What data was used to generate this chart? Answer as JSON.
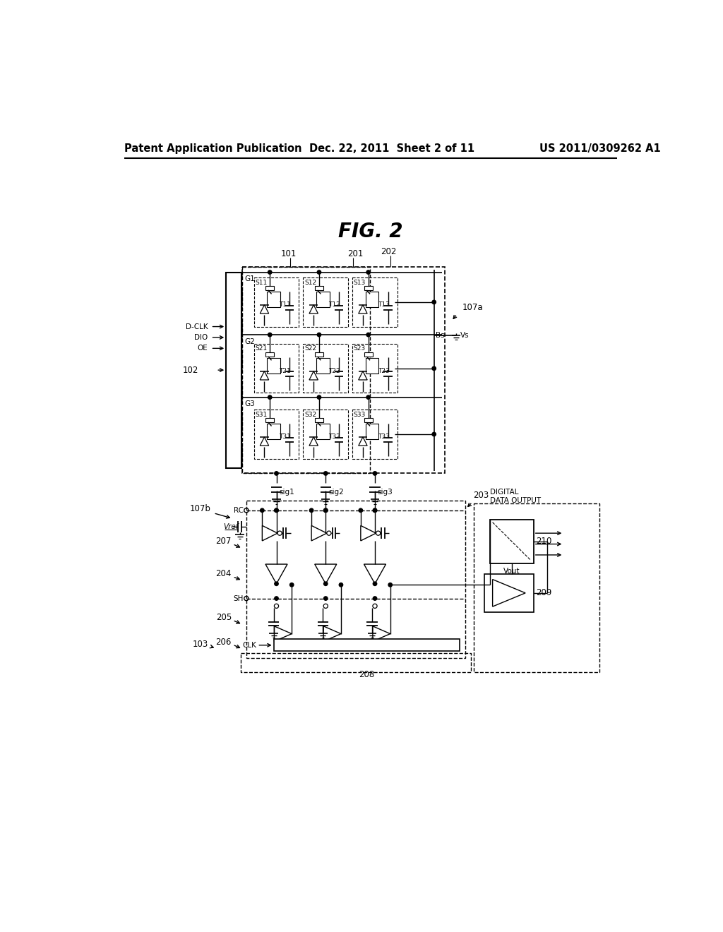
{
  "header_left": "Patent Application Publication",
  "header_mid": "Dec. 22, 2011  Sheet 2 of 11",
  "header_right": "US 2011/0309262 A1",
  "fig_title": "FIG. 2",
  "bg_color": "#ffffff",
  "line_color": "#000000",
  "header_fontsize": 10.5,
  "title_fontsize": 20,
  "label_fontsize": 8.5,
  "small_fontsize": 7.5,
  "tiny_fontsize": 6.5
}
